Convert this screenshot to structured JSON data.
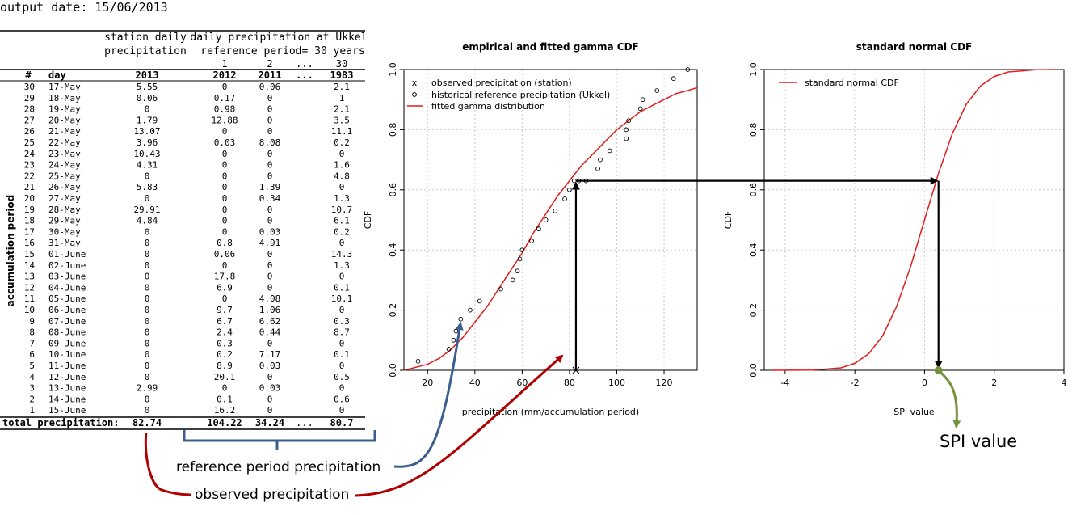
{
  "output_date": "output date: 15/06/2013",
  "table": {
    "header_station": [
      "station daily",
      "precipitation"
    ],
    "header_reference": [
      "daily precipitation at Ukkel",
      "reference period= 30 years"
    ],
    "index_labels": [
      "1",
      "2",
      "...",
      "30"
    ],
    "col_num": "#",
    "col_day": "day",
    "col_station_year": "2013",
    "col_years": [
      "2012",
      "2011",
      "...",
      "1983"
    ],
    "side_label": "accumulation period",
    "rows": [
      {
        "num": "30",
        "day": "17-May",
        "station": "5.55",
        "y2012": "0",
        "y2011": "0.06",
        "y1983": "2.1"
      },
      {
        "num": "29",
        "day": "18-May",
        "station": "0.06",
        "y2012": "0.17",
        "y2011": "0",
        "y1983": "1"
      },
      {
        "num": "28",
        "day": "19-May",
        "station": "0",
        "y2012": "0.98",
        "y2011": "0",
        "y1983": "2.1"
      },
      {
        "num": "27",
        "day": "20-May",
        "station": "1.79",
        "y2012": "12.88",
        "y2011": "0",
        "y1983": "3.5"
      },
      {
        "num": "26",
        "day": "21-May",
        "station": "13.07",
        "y2012": "0",
        "y2011": "0",
        "y1983": "11.1"
      },
      {
        "num": "25",
        "day": "22-May",
        "station": "3.96",
        "y2012": "0.03",
        "y2011": "8.08",
        "y1983": "0.2"
      },
      {
        "num": "24",
        "day": "23-May",
        "station": "10.43",
        "y2012": "0",
        "y2011": "0",
        "y1983": "0"
      },
      {
        "num": "23",
        "day": "24-May",
        "station": "4.31",
        "y2012": "0",
        "y2011": "0",
        "y1983": "1.6"
      },
      {
        "num": "22",
        "day": "25-May",
        "station": "0",
        "y2012": "0",
        "y2011": "0",
        "y1983": "4.8"
      },
      {
        "num": "21",
        "day": "26-May",
        "station": "5.83",
        "y2012": "0",
        "y2011": "1.39",
        "y1983": "0"
      },
      {
        "num": "20",
        "day": "27-May",
        "station": "0",
        "y2012": "0",
        "y2011": "0.34",
        "y1983": "1.3"
      },
      {
        "num": "19",
        "day": "28-May",
        "station": "29.91",
        "y2012": "0",
        "y2011": "0",
        "y1983": "10.7"
      },
      {
        "num": "18",
        "day": "29-May",
        "station": "4.84",
        "y2012": "0",
        "y2011": "0",
        "y1983": "6.1"
      },
      {
        "num": "17",
        "day": "30-May",
        "station": "0",
        "y2012": "0",
        "y2011": "0.03",
        "y1983": "0.2"
      },
      {
        "num": "16",
        "day": "31-May",
        "station": "0",
        "y2012": "0.8",
        "y2011": "4.91",
        "y1983": "0"
      },
      {
        "num": "15",
        "day": "01-June",
        "station": "0",
        "y2012": "0.06",
        "y2011": "0",
        "y1983": "14.3"
      },
      {
        "num": "14",
        "day": "02-June",
        "station": "0",
        "y2012": "0",
        "y2011": "0",
        "y1983": "1.3"
      },
      {
        "num": "13",
        "day": "03-June",
        "station": "0",
        "y2012": "17.8",
        "y2011": "0",
        "y1983": "0"
      },
      {
        "num": "12",
        "day": "04-June",
        "station": "0",
        "y2012": "6.9",
        "y2011": "0",
        "y1983": "0.1"
      },
      {
        "num": "11",
        "day": "05-June",
        "station": "0",
        "y2012": "0",
        "y2011": "4.08",
        "y1983": "10.1"
      },
      {
        "num": "10",
        "day": "06-June",
        "station": "0",
        "y2012": "9.7",
        "y2011": "1.06",
        "y1983": "0"
      },
      {
        "num": "9",
        "day": "07-June",
        "station": "0",
        "y2012": "6.7",
        "y2011": "6.62",
        "y1983": "0.3"
      },
      {
        "num": "8",
        "day": "08-June",
        "station": "0",
        "y2012": "2.4",
        "y2011": "0.44",
        "y1983": "8.7"
      },
      {
        "num": "7",
        "day": "09-June",
        "station": "0",
        "y2012": "0.3",
        "y2011": "0",
        "y1983": "0"
      },
      {
        "num": "6",
        "day": "10-June",
        "station": "0",
        "y2012": "0.2",
        "y2011": "7.17",
        "y1983": "0.1"
      },
      {
        "num": "5",
        "day": "11-June",
        "station": "0",
        "y2012": "8.9",
        "y2011": "0.03",
        "y1983": "0"
      },
      {
        "num": "4",
        "day": "12-June",
        "station": "0",
        "y2012": "20.1",
        "y2011": "0",
        "y1983": "0.5"
      },
      {
        "num": "3",
        "day": "13-June",
        "station": "2.99",
        "y2012": "0",
        "y2011": "0.03",
        "y1983": "0"
      },
      {
        "num": "2",
        "day": "14-June",
        "station": "0",
        "y2012": "0.1",
        "y2011": "0",
        "y1983": "0.6"
      },
      {
        "num": "1",
        "day": "15-June",
        "station": "0",
        "y2012": "16.2",
        "y2011": "0",
        "y1983": "0"
      }
    ],
    "total": {
      "label": "total precipitation:",
      "station": "82.74",
      "y2012": "104.22",
      "y2011": "34.24",
      "dots": "...",
      "y1983": "80.7"
    }
  },
  "annotations": {
    "reference": "reference period precipitation",
    "observed": "observed precipitation",
    "spi": "SPI value",
    "colors": {
      "reference": "#3a5f8f",
      "observed": "#b00000",
      "spi": "#76923c",
      "arrows": "#000000"
    }
  },
  "chart_data": [
    {
      "type": "scatter",
      "title": "empirical and fitted gamma CDF",
      "xlabel": "precipitation (mm/accumulation period)",
      "ylabel": "CDF",
      "xlim": [
        10,
        134
      ],
      "ylim": [
        0,
        1
      ],
      "xticks": [
        20,
        40,
        60,
        80,
        100,
        120
      ],
      "yticks": [
        0.0,
        0.2,
        0.4,
        0.6,
        0.8,
        1.0
      ],
      "grid": true,
      "legend_position": "top-left",
      "legend": [
        "observed precipitation (station)",
        "historical reference precipitation (Ukkel)",
        "fitted gamma distribution"
      ],
      "legend_markers": [
        "x",
        "o",
        ""
      ],
      "observed": {
        "x": 82.74,
        "y": 0.0
      },
      "historical": {
        "x": [
          16,
          29,
          31,
          32,
          34,
          38,
          42,
          51,
          56,
          58,
          59,
          60,
          64,
          67,
          67,
          70,
          74,
          78,
          80,
          82,
          84,
          87,
          92,
          93,
          97,
          104,
          104,
          105,
          110,
          111,
          117,
          124,
          130
        ],
        "y": [
          0.03,
          0.07,
          0.1,
          0.13,
          0.17,
          0.2,
          0.23,
          0.27,
          0.3,
          0.33,
          0.37,
          0.4,
          0.43,
          0.47,
          0.47,
          0.5,
          0.53,
          0.57,
          0.6,
          0.63,
          0.63,
          0.63,
          0.67,
          0.7,
          0.73,
          0.77,
          0.8,
          0.83,
          0.87,
          0.9,
          0.93,
          0.97,
          1.0
        ]
      },
      "fitted_gamma": {
        "x": [
          10,
          15,
          20,
          25,
          30,
          35,
          40,
          45,
          50,
          55,
          60,
          65,
          70,
          75,
          80,
          85,
          90,
          95,
          100,
          105,
          110,
          115,
          120,
          125,
          130,
          134
        ],
        "y": [
          0.0,
          0.01,
          0.02,
          0.04,
          0.07,
          0.11,
          0.16,
          0.21,
          0.27,
          0.33,
          0.39,
          0.46,
          0.52,
          0.58,
          0.63,
          0.68,
          0.72,
          0.76,
          0.8,
          0.83,
          0.86,
          0.88,
          0.9,
          0.92,
          0.93,
          0.94
        ]
      },
      "colors": {
        "fitted": "#e41a1c",
        "points": "#000000",
        "grid": "#cccccc"
      }
    },
    {
      "type": "line",
      "title": "standard normal CDF",
      "xlabel": "SPI value",
      "ylabel": "CDF",
      "xlim": [
        -4.6,
        4.0
      ],
      "ylim": [
        0,
        1
      ],
      "xticks": [
        -4,
        -2,
        0,
        2,
        4
      ],
      "yticks": [
        0.0,
        0.2,
        0.4,
        0.6,
        0.8,
        1.0
      ],
      "grid": true,
      "legend_position": "top-left",
      "legend": [
        "standard normal CDF"
      ],
      "series": [
        {
          "name": "standard normal CDF",
          "x": [
            -4.4,
            -3.2,
            -2.4,
            -2.0,
            -1.6,
            -1.2,
            -0.8,
            -0.4,
            0.0,
            0.4,
            0.8,
            1.2,
            1.6,
            2.0,
            2.4,
            3.2,
            3.8
          ],
          "y": [
            0.0,
            0.0007,
            0.008,
            0.023,
            0.055,
            0.115,
            0.212,
            0.345,
            0.5,
            0.655,
            0.788,
            0.885,
            0.945,
            0.977,
            0.992,
            0.9993,
            1.0
          ]
        }
      ],
      "spi_value": 0.4,
      "colors": {
        "line": "#e41a1c",
        "grid": "#cccccc"
      }
    }
  ]
}
